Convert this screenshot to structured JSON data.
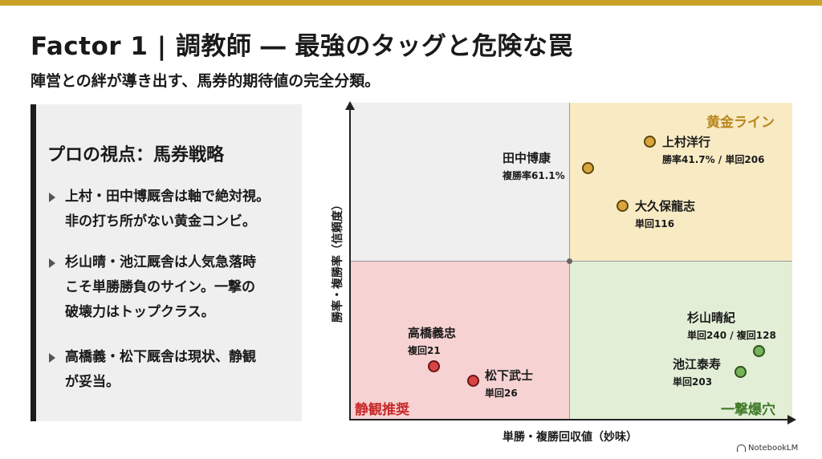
{
  "header": {
    "title": "Factor 1 | 調教師 ― 最強のタッグと危険な罠",
    "subtitle": "陣営との絆が導き出す、馬券的期待値の完全分類。"
  },
  "panel": {
    "heading": "プロの視点：馬券戦略",
    "bullets": [
      {
        "lines": [
          "上村・田中博厩舎は軸で絶対視。",
          "非の打ち所がない黄金コンビ。"
        ]
      },
      {
        "lines": [
          "杉山晴・池江厩舎は人気急落時",
          "こそ単勝勝負のサイン。一撃の",
          "破壊力はトップクラス。"
        ]
      },
      {
        "lines": [
          "高橋義・松下厩舎は現状、静観",
          "が妥当。"
        ]
      }
    ]
  },
  "chart_data": {
    "type": "scatter",
    "xlabel": "単勝・複勝回収値（妙味）",
    "ylabel": "勝率・複勝率（信頼度）",
    "quadrants": {
      "top_right": {
        "label": "黄金ライン",
        "color": "#f8ebc4"
      },
      "bottom_left": {
        "label": "静観推奨",
        "color": "#f6d2d2"
      },
      "bottom_right": {
        "label": "一撃爆穴",
        "color": "#e2efd6"
      },
      "top_left": {
        "label": "",
        "color": "#efefef"
      }
    },
    "points": [
      {
        "name": "上村洋行",
        "stat": "勝率41.7% / 単回206",
        "group": "gold"
      },
      {
        "name": "田中博康",
        "stat": "複勝率61.1%",
        "group": "gold"
      },
      {
        "name": "大久保龍志",
        "stat": "単回116",
        "group": "gold"
      },
      {
        "name": "高橋義忠",
        "stat": "複回21",
        "group": "red"
      },
      {
        "name": "松下武士",
        "stat": "単回26",
        "group": "red"
      },
      {
        "name": "杉山晴紀",
        "stat": "単回240 / 複回128",
        "group": "green"
      },
      {
        "name": "池江泰寿",
        "stat": "単回203",
        "group": "green"
      }
    ]
  },
  "colors": {
    "accent": "#c9a227",
    "gold": "#d9a53a",
    "red": "#d84545",
    "green": "#77b35a"
  },
  "footer": {
    "brand": "NotebookLM"
  }
}
